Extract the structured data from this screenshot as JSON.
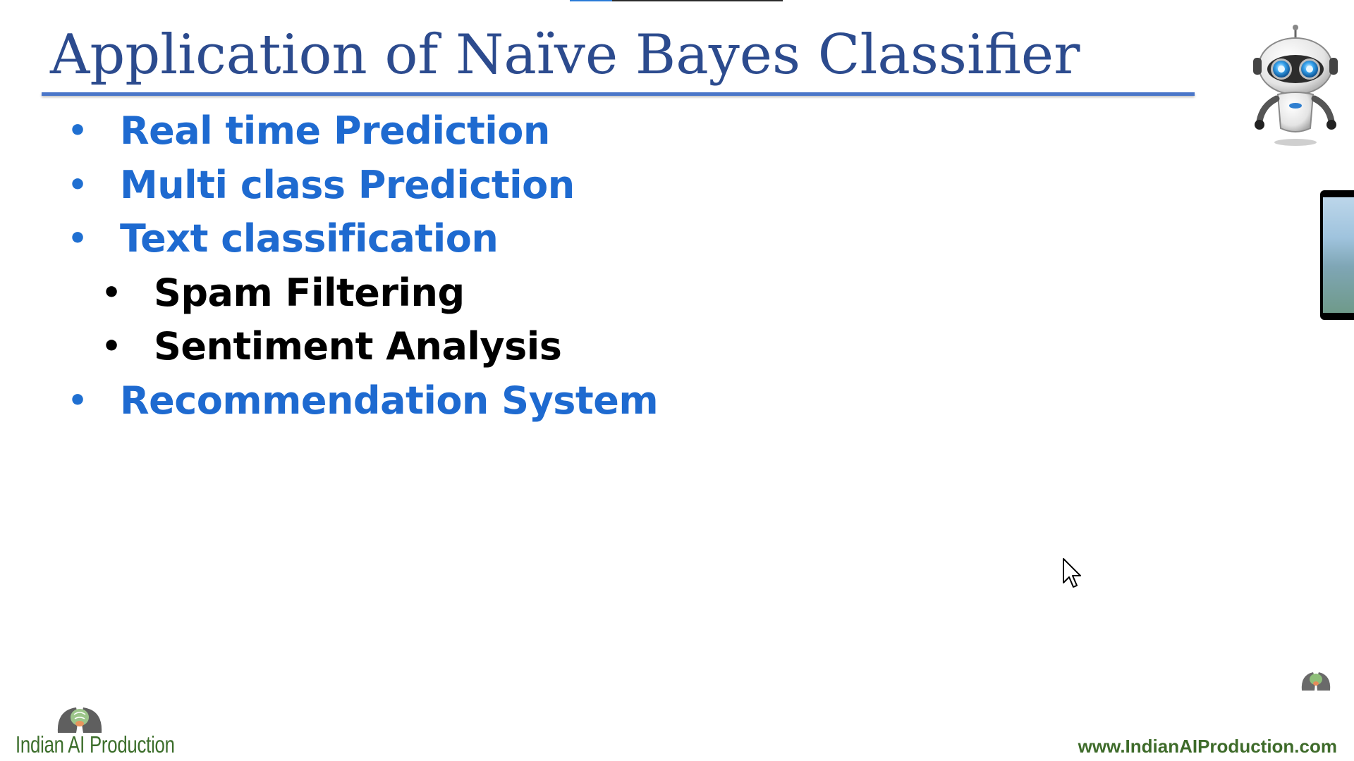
{
  "slide": {
    "title": "Application of Naïve Bayes Classifier",
    "bullets": [
      {
        "level": 1,
        "text": "Real time Prediction"
      },
      {
        "level": 1,
        "text": "Multi class Prediction"
      },
      {
        "level": 1,
        "text": "Text classification"
      },
      {
        "level": 2,
        "text": "Spam Filtering"
      },
      {
        "level": 2,
        "text": "Sentiment Analysis"
      },
      {
        "level": 1,
        "text": "Recommendation System"
      }
    ],
    "bullet_glyph": "•"
  },
  "footer": {
    "brand": "Indian AI Production",
    "website": "www.IndianAIProduction.com"
  },
  "icons": {
    "robot": "robot-icon",
    "brain_logo": "brain-heads-logo-icon",
    "cursor": "mouse-pointer-icon"
  },
  "colors": {
    "title": "#2c4b8e",
    "accent_blue": "#1e6ad0",
    "rule": "#4a76c9",
    "brand_green": "#3c6e2b"
  }
}
